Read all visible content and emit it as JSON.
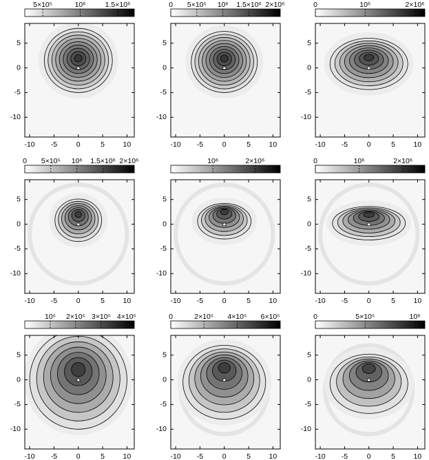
{
  "chart_data": [
    {
      "type": "heatmap",
      "xlim": [
        -11,
        11.5
      ],
      "ylim": [
        -14,
        9
      ],
      "xticks": [
        -10,
        -5,
        0,
        5,
        10
      ],
      "yticks": [
        5,
        0,
        -5,
        -10
      ],
      "clim": [
        260000,
        1720000
      ],
      "cticks": [
        {
          "value": 500000,
          "label": "5×10⁵"
        },
        {
          "value": 1000000,
          "label": "10⁶"
        },
        {
          "value": 1500000,
          "label": "1.5×10⁶"
        }
      ]
    },
    {
      "type": "heatmap",
      "xlim": [
        -11,
        11.5
      ],
      "ylim": [
        -14,
        9
      ],
      "xticks": [
        -10,
        -5,
        0,
        5,
        10
      ],
      "yticks": [
        5,
        0,
        -5,
        -10
      ],
      "clim": [
        0,
        2100000
      ],
      "cticks": [
        0,
        {
          "value": 500000,
          "label": "5×10⁵"
        },
        {
          "value": 1000000,
          "label": "10⁶"
        },
        {
          "value": 1500000,
          "label": "1.5×10⁶"
        },
        {
          "value": 2000000,
          "label": "2×10⁶"
        }
      ]
    },
    {
      "type": "heatmap",
      "xlim": [
        -11,
        11.5
      ],
      "ylim": [
        -14,
        9
      ],
      "xticks": [
        -10,
        -5,
        0,
        5,
        10
      ],
      "yticks": [
        5,
        0,
        -5,
        -10
      ],
      "clim": [
        0,
        2200000
      ],
      "cticks": [
        0,
        {
          "value": 1000000,
          "label": "10⁶"
        },
        {
          "value": 2000000,
          "label": "2×10⁶"
        }
      ]
    },
    {
      "type": "heatmap",
      "xlim": [
        -11,
        11.5
      ],
      "ylim": [
        -14,
        9
      ],
      "xticks": [
        -10,
        -5,
        0,
        5,
        10
      ],
      "yticks": [
        5,
        0,
        -5,
        -10
      ],
      "clim": [
        0,
        2100000
      ],
      "cticks": [
        0,
        {
          "value": 500000,
          "label": "5×10⁵"
        },
        {
          "value": 1000000,
          "label": "10⁶"
        },
        {
          "value": 1500000,
          "label": "1.5×10⁶"
        },
        {
          "value": 2000000,
          "label": "2×10⁶"
        }
      ]
    },
    {
      "type": "heatmap",
      "xlim": [
        -11,
        11.5
      ],
      "ylim": [
        -14,
        9
      ],
      "xticks": [
        -10,
        -5,
        0,
        5,
        10
      ],
      "yticks": [
        5,
        0,
        -5,
        -10
      ],
      "clim": [
        0,
        2600000
      ],
      "cticks": [
        {
          "value": 1000000,
          "label": "10⁶"
        },
        {
          "value": 2000000,
          "label": "2×10⁶"
        }
      ]
    },
    {
      "type": "heatmap",
      "xlim": [
        -11,
        11.5
      ],
      "ylim": [
        -14,
        9
      ],
      "xticks": [
        -10,
        -5,
        0,
        5,
        10
      ],
      "yticks": [
        5,
        0,
        -5,
        -10
      ],
      "clim": [
        0,
        2500000
      ],
      "cticks": [
        0,
        {
          "value": 1000000,
          "label": "10⁶"
        },
        {
          "value": 2000000,
          "label": "2×10⁶"
        }
      ]
    },
    {
      "type": "heatmap",
      "xlim": [
        -11,
        11.5
      ],
      "ylim": [
        -14,
        9
      ],
      "xticks": [
        -10,
        -5,
        0,
        5,
        10
      ],
      "yticks": [
        5,
        0,
        -5,
        -10
      ],
      "clim": [
        0,
        430000
      ],
      "cticks": [
        {
          "value": 100000,
          "label": "10⁵"
        },
        {
          "value": 200000,
          "label": "2×10⁵"
        },
        {
          "value": 300000,
          "label": "3×10⁵"
        },
        {
          "value": 400000,
          "label": "4×10⁵"
        }
      ]
    },
    {
      "type": "heatmap",
      "xlim": [
        -11,
        11.5
      ],
      "ylim": [
        -14,
        9
      ],
      "xticks": [
        -10,
        -5,
        0,
        5,
        10
      ],
      "yticks": [
        5,
        0,
        -5,
        -10
      ],
      "clim": [
        0,
        660000
      ],
      "cticks": [
        0,
        {
          "value": 200000,
          "label": "2×10⁵"
        },
        {
          "value": 400000,
          "label": "4×10⁵"
        },
        {
          "value": 600000,
          "label": "6×10⁵"
        }
      ]
    },
    {
      "type": "heatmap",
      "xlim": [
        -11,
        11.5
      ],
      "ylim": [
        -14,
        9
      ],
      "xticks": [
        -10,
        -5,
        0,
        5,
        10
      ],
      "yticks": [
        5,
        0,
        -5,
        -10
      ],
      "clim": [
        0,
        1100000
      ],
      "cticks": [
        0,
        {
          "value": 500000,
          "label": "5×10⁵"
        },
        {
          "value": 1000000,
          "label": "10⁶"
        }
      ]
    }
  ]
}
